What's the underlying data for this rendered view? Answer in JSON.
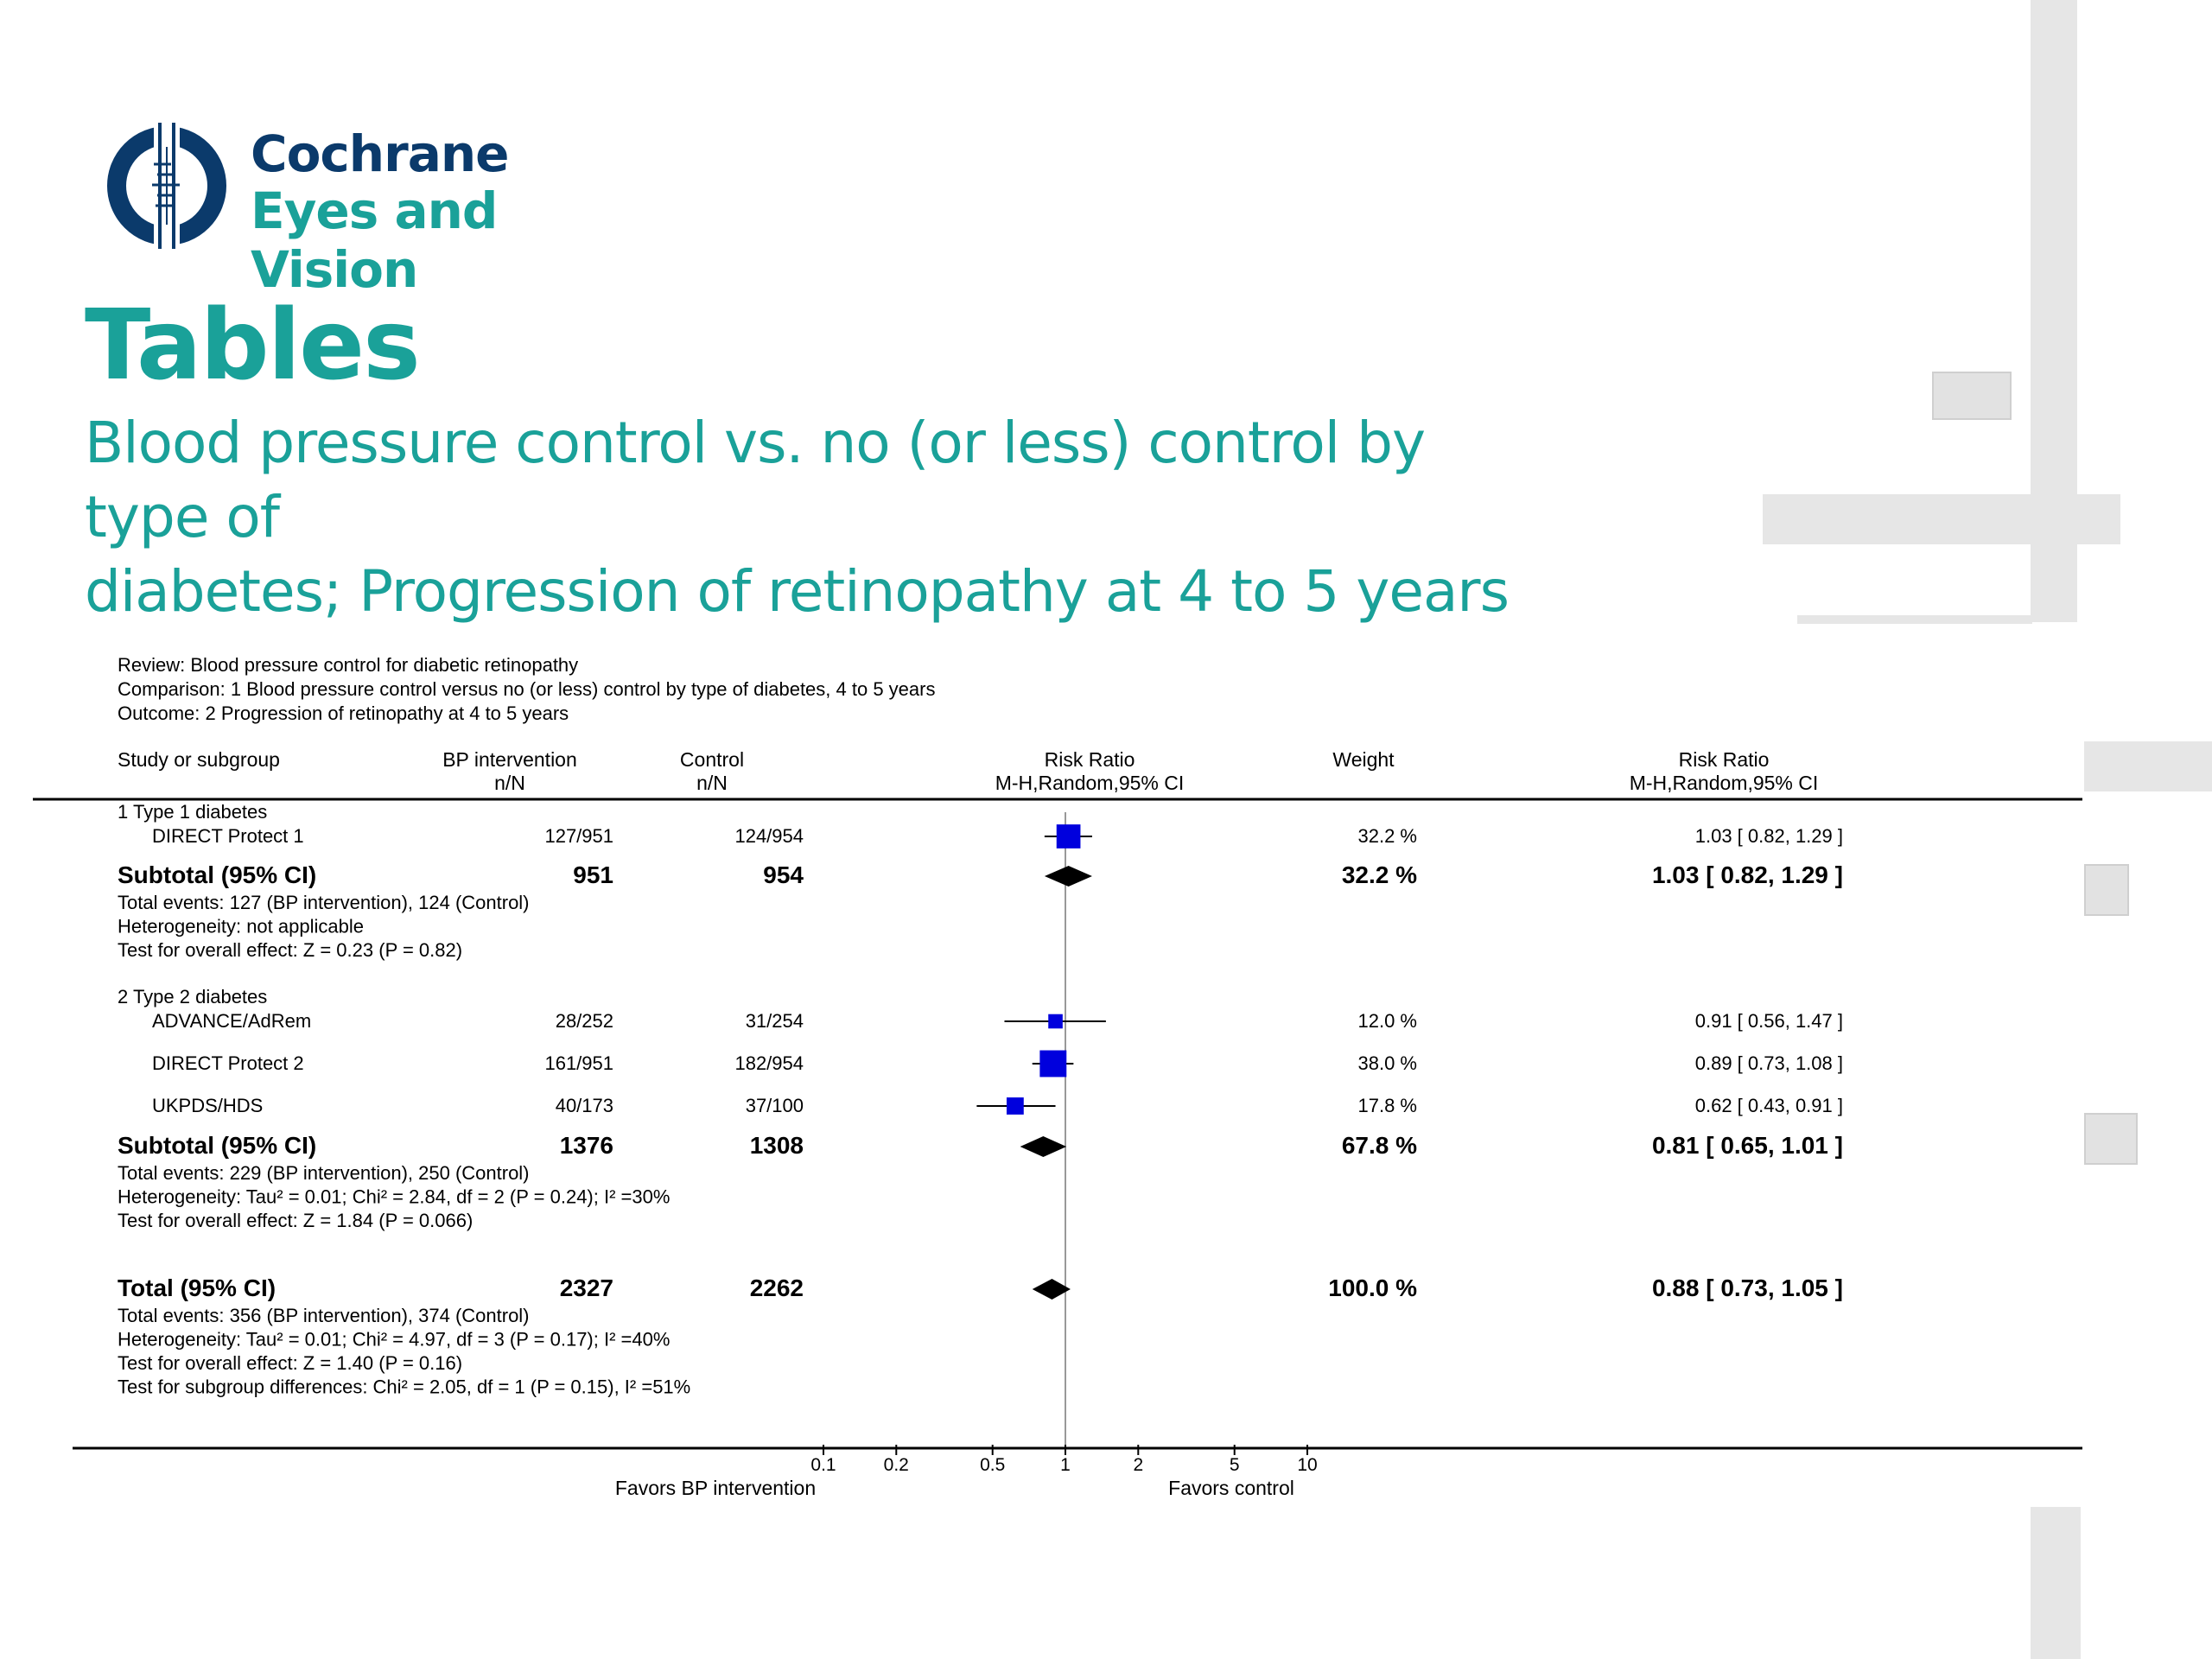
{
  "logo": {
    "line1": "Cochrane",
    "line2": "Eyes and Vision",
    "colors": {
      "navy": "#0b3a6b",
      "teal": "#1aa199"
    }
  },
  "page_title": "Tables",
  "subtitle_line1": "Blood pressure control vs. no (or less) control by type of",
  "subtitle_line2": "diabetes; Progression of retinopathy at 4 to 5 years",
  "chart_data": {
    "type": "scatter",
    "chart_kind": "forest-plot",
    "scale": "log",
    "xlim": [
      0.1,
      10
    ],
    "x_ticks": [
      "0.1",
      "0.2",
      "0.5",
      "1",
      "2",
      "5",
      "10"
    ],
    "x_tick_values": [
      0.1,
      0.2,
      0.5,
      1,
      2,
      5,
      10
    ],
    "favors_left": "Favors BP intervention",
    "favors_right": "Favors control",
    "colors": {
      "study": "#0000dd",
      "pooled": "#000000"
    },
    "meta": {
      "review": "Review:   Blood pressure control for diabetic retinopathy",
      "comparison": "Comparison:   1 Blood pressure control versus no (or less) control by type of diabetes, 4 to 5 years",
      "outcome": "Outcome:   2 Progression of retinopathy at 4 to 5 years"
    },
    "headers": {
      "study": "Study or subgroup",
      "bp_1": "BP intervention",
      "bp_2": "n/N",
      "ctrl_1": "Control",
      "ctrl_2": "n/N",
      "rr_1": "Risk Ratio",
      "rr_2": "M-H,Random,95% CI",
      "weight": "Weight",
      "rrtext_1": "Risk Ratio",
      "rrtext_2": "M-H,Random,95% CI"
    },
    "subgroups": [
      {
        "label": "1 Type 1 diabetes",
        "studies": [
          {
            "name": "DIRECT Protect 1",
            "bp": "127/951",
            "ctrl": "124/954",
            "rr": 1.03,
            "lo": 0.82,
            "hi": 1.29,
            "weight": "32.2 %",
            "ci_text": "1.03 [ 0.82, 1.29 ]"
          }
        ],
        "subtotal": {
          "label": "Subtotal (95% CI)",
          "bp": "951",
          "ctrl": "954",
          "rr": 1.03,
          "lo": 0.82,
          "hi": 1.29,
          "weight": "32.2 %",
          "ci_text": "1.03 [ 0.82, 1.29 ]"
        },
        "notes": [
          "Total events: 127 (BP intervention), 124 (Control)",
          "Heterogeneity: not applicable",
          "Test for overall effect: Z = 0.23 (P = 0.82)"
        ]
      },
      {
        "label": "2 Type 2 diabetes",
        "studies": [
          {
            "name": "ADVANCE/AdRem",
            "bp": "28/252",
            "ctrl": "31/254",
            "rr": 0.91,
            "lo": 0.56,
            "hi": 1.47,
            "weight": "12.0 %",
            "ci_text": "0.91 [ 0.56, 1.47 ]"
          },
          {
            "name": "DIRECT Protect 2",
            "bp": "161/951",
            "ctrl": "182/954",
            "rr": 0.89,
            "lo": 0.73,
            "hi": 1.08,
            "weight": "38.0 %",
            "ci_text": "0.89 [ 0.73, 1.08 ]"
          },
          {
            "name": "UKPDS/HDS",
            "bp": "40/173",
            "ctrl": "37/100",
            "rr": 0.62,
            "lo": 0.43,
            "hi": 0.91,
            "weight": "17.8 %",
            "ci_text": "0.62 [ 0.43, 0.91 ]"
          }
        ],
        "subtotal": {
          "label": "Subtotal (95% CI)",
          "bp": "1376",
          "ctrl": "1308",
          "rr": 0.81,
          "lo": 0.65,
          "hi": 1.01,
          "weight": "67.8 %",
          "ci_text": "0.81 [ 0.65, 1.01 ]"
        },
        "notes": [
          "Total events: 229 (BP intervention), 250 (Control)",
          "Heterogeneity: Tau² = 0.01; Chi² = 2.84, df = 2 (P = 0.24); I² =30%",
          "Test for overall effect: Z = 1.84 (P = 0.066)"
        ]
      }
    ],
    "total": {
      "label": "Total (95% CI)",
      "bp": "2327",
      "ctrl": "2262",
      "rr": 0.88,
      "lo": 0.73,
      "hi": 1.05,
      "weight": "100.0 %",
      "ci_text": "0.88 [ 0.73, 1.05 ]",
      "notes": [
        "Total events: 356 (BP intervention), 374 (Control)",
        "Heterogeneity: Tau² = 0.01; Chi² = 4.97, df = 3 (P = 0.17); I² =40%",
        "Test for overall effect: Z = 1.40 (P = 0.16)",
        "Test for subgroup differences: Chi² = 2.05, df = 1 (P = 0.15), I² =51%"
      ]
    }
  }
}
